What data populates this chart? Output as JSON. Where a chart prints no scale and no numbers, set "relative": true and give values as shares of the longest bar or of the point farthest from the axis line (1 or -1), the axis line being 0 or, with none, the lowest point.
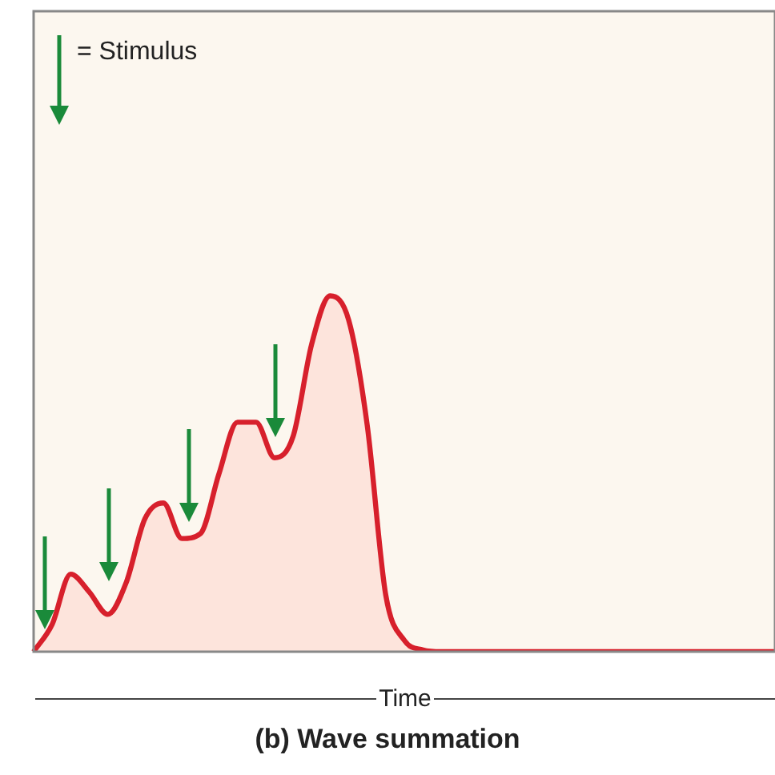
{
  "chart_data": {
    "type": "area",
    "title": "(b)  Wave summation",
    "xlabel": "Time",
    "relative": true,
    "legend": false,
    "tick_labels": false,
    "marker": "none",
    "annotations": [
      "= Stimulus"
    ],
    "categories": [
      null,
      null,
      null,
      null,
      null,
      null,
      null,
      null,
      null,
      null,
      null,
      null,
      null,
      null,
      null,
      null,
      null,
      null,
      null,
      null,
      null,
      null,
      null,
      null,
      null,
      null,
      null,
      null,
      null,
      null,
      null,
      null,
      null,
      null,
      null,
      null,
      null,
      null,
      null,
      null,
      null
    ],
    "series": [
      {
        "color": "#d7202c",
        "values": [
          0,
          0.077,
          0.218,
          0.168,
          0.105,
          0.195,
          0.373,
          0.418,
          0.318,
          0.332,
          0.5,
          0.645,
          0.645,
          0.545,
          0.605,
          0.864,
          1,
          0.932,
          0.636,
          0.159,
          0.032,
          0.005,
          0,
          0,
          0,
          0,
          0,
          0,
          0,
          0,
          0,
          0,
          0,
          0,
          0,
          0,
          0,
          0,
          0,
          0,
          0
        ]
      }
    ]
  }
}
